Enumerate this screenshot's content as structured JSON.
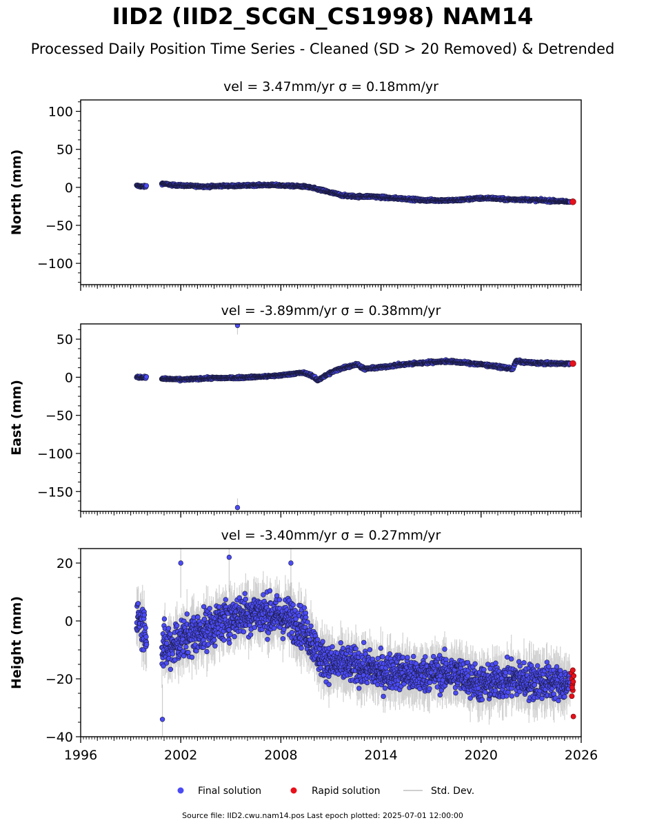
{
  "title": "IID2 (IID2_SCGN_CS1998) NAM14",
  "subtitle": "Processed Daily Position Time Series - Cleaned (SD > 20 Removed) & Detrended",
  "footer": "Source file: IID2.cwu.nam14.pos  Last epoch plotted: 2025-07-01 12:00:00",
  "legend": {
    "final": "Final solution",
    "rapid": "Rapid solution",
    "std": "Std. Dev."
  },
  "colors": {
    "final": "#4b4bf5",
    "rapid": "#e8101a",
    "std": "#9a9a9a",
    "marker_edge": "#1a1a3a"
  },
  "chart_data": [
    {
      "type": "scatter",
      "component": "north",
      "panel_title": "vel = 3.47mm/yr   σ = 0.18mm/yr",
      "ylabel": "North (mm)",
      "xlim": [
        1996,
        2026
      ],
      "ylim": [
        -128,
        115
      ],
      "yticks": [
        100,
        50,
        0,
        -50,
        -100
      ],
      "ytick_labels": [
        "100",
        "50",
        "0",
        "−50",
        "−100"
      ],
      "xticks": [
        1996,
        2002,
        2008,
        2014,
        2020,
        2026
      ],
      "show_xtick_labels": false,
      "series": [
        {
          "name": "Final solution",
          "role": "final",
          "x": [
            1999.4,
            1999.8,
            2000.9,
            2001.5,
            2002.5,
            2003.5,
            2004.5,
            2005.5,
            2006.5,
            2007.5,
            2008.5,
            2009.5,
            2010.3,
            2011.0,
            2011.8,
            2012.6,
            2013.5,
            2014.5,
            2015.5,
            2016.5,
            2017.5,
            2018.5,
            2019.5,
            2020.5,
            2021.5,
            2022.5,
            2023.5,
            2024.5,
            2025.3
          ],
          "y": [
            2,
            1,
            5,
            3,
            2,
            1,
            2,
            2,
            3,
            3,
            2,
            1,
            -3,
            -7,
            -11,
            -12,
            -12,
            -14,
            -15,
            -17,
            -17,
            -17,
            -15,
            -14,
            -16,
            -16,
            -17,
            -18,
            -19
          ],
          "spread": [
            2.5,
            2.5,
            2.5,
            2.5,
            2.5,
            2.5,
            2.5,
            2.5,
            2.5,
            2.5,
            2.5,
            2.5,
            3,
            3,
            3,
            3,
            3,
            3,
            3,
            3,
            3,
            3,
            3,
            3,
            3,
            3,
            3,
            3,
            2.5
          ]
        },
        {
          "name": "Rapid solution",
          "role": "rapid",
          "x": [
            2025.5
          ],
          "y": [
            -19
          ]
        }
      ],
      "outliers": []
    },
    {
      "type": "scatter",
      "component": "east",
      "panel_title": "vel = -3.89mm/yr   σ = 0.38mm/yr",
      "ylabel": "East (mm)",
      "xlim": [
        1996,
        2026
      ],
      "ylim": [
        -176,
        70
      ],
      "yticks": [
        50,
        0,
        -50,
        -100,
        -150
      ],
      "ytick_labels": [
        "50",
        "0",
        "−50",
        "−100",
        "−150"
      ],
      "xticks": [
        1996,
        2002,
        2008,
        2014,
        2020,
        2026
      ],
      "show_xtick_labels": false,
      "series": [
        {
          "name": "Final solution",
          "role": "final",
          "x": [
            1999.4,
            1999.8,
            2000.9,
            2002.0,
            2003.0,
            2004.0,
            2005.0,
            2006.0,
            2007.0,
            2007.8,
            2008.5,
            2009.3,
            2009.8,
            2010.2,
            2010.5,
            2011.0,
            2011.5,
            2012.0,
            2012.6,
            2013.0,
            2014.0,
            2015.0,
            2016.0,
            2017.0,
            2018.0,
            2019.0,
            2020.0,
            2021.0,
            2021.9,
            2022.1,
            2023.0,
            2024.0,
            2025.3
          ],
          "y": [
            0,
            0,
            -2,
            -3,
            -2,
            -1,
            -1,
            0,
            1,
            2,
            4,
            6,
            3,
            -4,
            0,
            6,
            11,
            14,
            17,
            11,
            13,
            16,
            18,
            20,
            21,
            19,
            17,
            14,
            11,
            21,
            19,
            18,
            18
          ],
          "spread": [
            2.5,
            2.5,
            2.5,
            2.5,
            2.5,
            2.5,
            2.5,
            2.5,
            2.5,
            2.5,
            2.5,
            2.5,
            3,
            3,
            3,
            3,
            3,
            3,
            3,
            3,
            3,
            3,
            3,
            3,
            3,
            3,
            3,
            3,
            3,
            3,
            3,
            3,
            2.5
          ]
        },
        {
          "name": "Rapid solution",
          "role": "rapid",
          "x": [
            2025.5
          ],
          "y": [
            18
          ]
        }
      ],
      "outliers": [
        {
          "x": 2005.4,
          "y": 68
        },
        {
          "x": 2005.4,
          "y": -171
        }
      ]
    },
    {
      "type": "scatter",
      "component": "height",
      "panel_title": "vel = -3.40mm/yr   σ = 0.27mm/yr",
      "ylabel": "Height (mm)",
      "xlim": [
        1996,
        2026
      ],
      "ylim": [
        -40,
        25
      ],
      "yticks": [
        20,
        0,
        -20,
        -40
      ],
      "ytick_labels": [
        "20",
        "0",
        "−20",
        "−40"
      ],
      "xticks": [
        1996,
        2002,
        2008,
        2014,
        2020,
        2026
      ],
      "xtick_labels": [
        "1996",
        "2002",
        "2008",
        "2014",
        "2020",
        "2026"
      ],
      "show_xtick_labels": true,
      "series": [
        {
          "name": "Final solution",
          "role": "final",
          "x": [
            1999.4,
            1999.8,
            2000.9,
            2001.5,
            2002.5,
            2003.5,
            2004.5,
            2005.5,
            2006.5,
            2007.5,
            2008.5,
            2009.5,
            2010.3,
            2011.0,
            2012.0,
            2013.0,
            2014.0,
            2015.0,
            2016.0,
            2017.0,
            2018.0,
            2019.0,
            2020.0,
            2021.0,
            2022.0,
            2023.0,
            2024.0,
            2025.3
          ],
          "y": [
            2,
            -2,
            -10,
            -8,
            -5,
            -3,
            0,
            2,
            3,
            2,
            1,
            -3,
            -12,
            -15,
            -15,
            -16,
            -18,
            -17,
            -19,
            -18,
            -18,
            -19,
            -22,
            -21,
            -20,
            -21,
            -21,
            -22
          ],
          "spread": [
            9,
            10,
            11,
            10,
            9,
            9,
            9,
            9,
            9,
            9,
            9,
            9,
            8,
            8,
            8,
            8,
            8,
            8,
            8,
            8,
            8,
            8,
            8,
            8,
            8,
            8,
            8,
            7
          ]
        },
        {
          "name": "Rapid solution",
          "role": "rapid",
          "x": [
            2025.42,
            2025.45,
            2025.48,
            2025.5,
            2025.52,
            2025.55,
            2025.44,
            2025.5,
            2025.46,
            2025.53
          ],
          "y": [
            -18,
            -20,
            -22,
            -24,
            -21,
            -19,
            -26,
            -17,
            -23,
            -33
          ]
        }
      ],
      "outliers": [
        {
          "x": 2000.9,
          "y": -34
        },
        {
          "x": 2002.0,
          "y": 20
        },
        {
          "x": 2004.9,
          "y": 22
        },
        {
          "x": 2008.6,
          "y": 20
        }
      ]
    }
  ]
}
